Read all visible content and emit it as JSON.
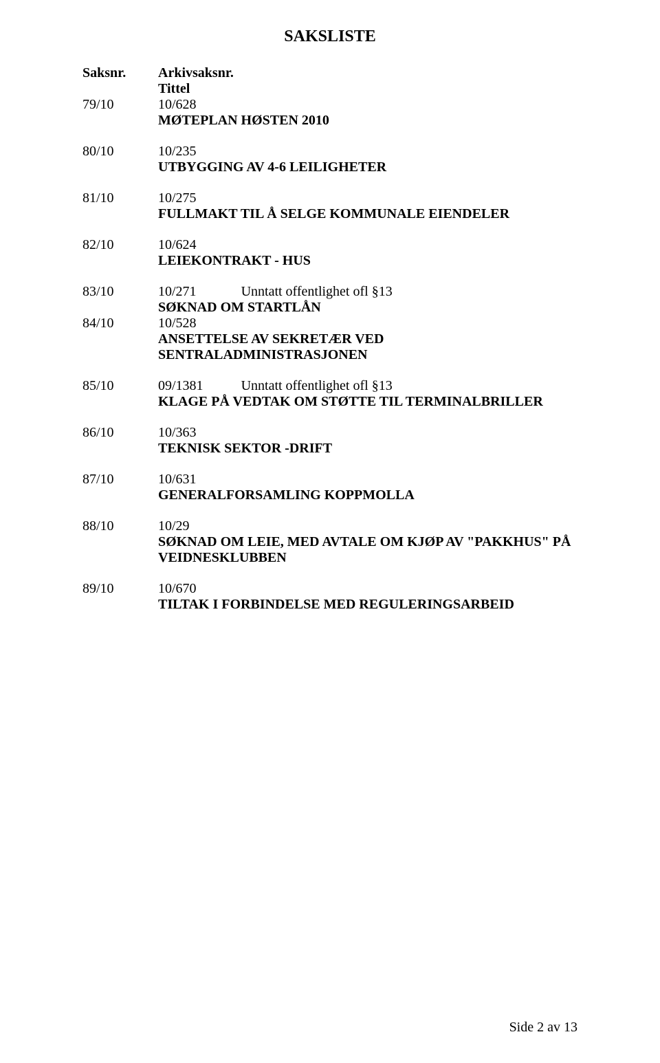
{
  "page": {
    "title": "SAKSLISTE",
    "footer": "Side 2 av 13"
  },
  "header": {
    "col1": "Saksnr.",
    "col2": "Arkivsaksnr.",
    "col2b": "Tittel"
  },
  "items": [
    {
      "saksnr": "79/10",
      "arkiv": "10/628",
      "note": "",
      "title": "MØTEPLAN HØSTEN 2010"
    },
    {
      "saksnr": "80/10",
      "arkiv": "10/235",
      "note": "",
      "title": "UTBYGGING AV 4-6 LEILIGHETER"
    },
    {
      "saksnr": "81/10",
      "arkiv": "10/275",
      "note": "",
      "title": "FULLMAKT TIL Å SELGE KOMMUNALE EIENDELER"
    },
    {
      "saksnr": "82/10",
      "arkiv": "10/624",
      "note": "",
      "title": "LEIEKONTRAKT - HUS"
    },
    {
      "saksnr": "83/10",
      "arkiv": "10/271",
      "note": "Unntatt offentlighet ofl §13",
      "title": "SØKNAD OM STARTLÅN"
    },
    {
      "saksnr": "84/10",
      "arkiv": "10/528",
      "note": "",
      "title": "ANSETTELSE AV SEKRETÆR VED SENTRALADMINISTRASJONEN"
    },
    {
      "saksnr": "85/10",
      "arkiv": "09/1381",
      "note": "Unntatt offentlighet ofl §13",
      "title": "KLAGE  PÅ  VEDTAK  OM  STØTTE TIL TERMINALBRILLER"
    },
    {
      "saksnr": "86/10",
      "arkiv": "10/363",
      "note": "",
      "title": "TEKNISK SEKTOR -DRIFT"
    },
    {
      "saksnr": "87/10",
      "arkiv": "10/631",
      "note": "",
      "title": "GENERALFORSAMLING KOPPMOLLA"
    },
    {
      "saksnr": "88/10",
      "arkiv": "10/29",
      "note": "",
      "title": "SØKNAD OM LEIE, MED AVTALE OM KJØP AV \"PAKKHUS\" PÅ VEIDNESKLUBBEN"
    },
    {
      "saksnr": "89/10",
      "arkiv": "10/670",
      "note": "",
      "title": "TILTAK I FORBINDELSE MED REGULERINGSARBEID"
    }
  ]
}
